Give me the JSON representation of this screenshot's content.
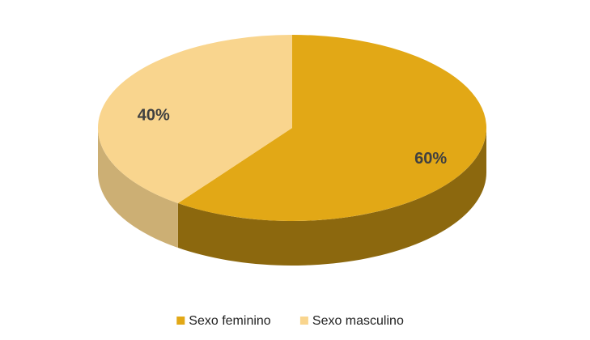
{
  "chart_data": {
    "type": "pie",
    "categories": [
      "Sexo feminino",
      "Sexo masculino"
    ],
    "values": [
      60,
      40
    ],
    "value_labels": [
      "60%",
      "40%"
    ],
    "colors": [
      "#e2a816",
      "#f9d58e"
    ],
    "legend": "bottom"
  }
}
